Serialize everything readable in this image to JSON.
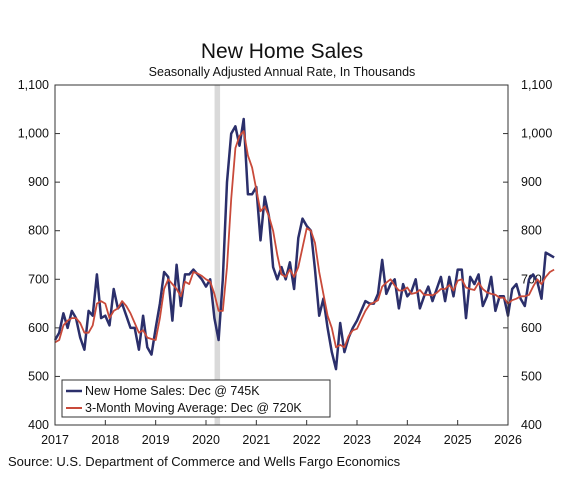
{
  "chart_data": {
    "type": "line",
    "title": "New Home Sales",
    "subtitle": "Seasonally Adjusted Annual Rate, In Thousands",
    "ylim": [
      400,
      1100
    ],
    "xlim": [
      2017,
      2026
    ],
    "y_ticks": [
      "1,100",
      "1,000",
      "900",
      "800",
      "700",
      "600",
      "500",
      "400"
    ],
    "y_tick_values": [
      1100,
      1000,
      900,
      800,
      700,
      600,
      500,
      400
    ],
    "x_ticks": [
      "2017",
      "2018",
      "2019",
      "2020",
      "2021",
      "2022",
      "2023",
      "2024",
      "2025",
      "2026"
    ],
    "x_tick_values": [
      2017,
      2018,
      2019,
      2020,
      2021,
      2022,
      2023,
      2024,
      2025,
      2026
    ],
    "grid": false,
    "right_axis": true,
    "legend_position": "bottom-left",
    "recession_shading": {
      "start": 2020.17,
      "end": 2020.28,
      "color": "#d9d9d9"
    },
    "x_start": 2017.0,
    "x_step": 0.08333,
    "series": [
      {
        "name": "New Home Sales: Dec @ 745K",
        "color": "#2b2f6b",
        "values": [
          575,
          590,
          630,
          600,
          635,
          620,
          580,
          555,
          635,
          625,
          710,
          620,
          625,
          605,
          680,
          640,
          650,
          625,
          600,
          600,
          555,
          625,
          560,
          545,
          600,
          650,
          715,
          705,
          615,
          730,
          645,
          710,
          710,
          720,
          710,
          700,
          685,
          700,
          620,
          575,
          700,
          900,
          1000,
          1015,
          975,
          1030,
          875,
          875,
          890,
          780,
          870,
          830,
          725,
          700,
          725,
          700,
          735,
          680,
          785,
          825,
          810,
          800,
          720,
          625,
          660,
          600,
          550,
          515,
          610,
          550,
          580,
          600,
          615,
          635,
          655,
          650,
          650,
          670,
          740,
          670,
          690,
          700,
          640,
          690,
          665,
          675,
          700,
          640,
          665,
          685,
          655,
          680,
          705,
          655,
          705,
          665,
          720,
          720,
          620,
          705,
          690,
          710,
          645,
          665,
          705,
          635,
          665,
          665,
          625,
          680,
          690,
          660,
          645,
          700,
          710,
          695,
          660,
          755,
          750,
          745
        ]
      },
      {
        "name": "3-Month Moving Average: Dec @ 720K",
        "color": "#c94a3a",
        "values": [
          570,
          575,
          605,
          615,
          620,
          620,
          610,
          590,
          590,
          605,
          650,
          655,
          650,
          620,
          635,
          640,
          655,
          645,
          630,
          610,
          590,
          595,
          580,
          577,
          575,
          620,
          680,
          700,
          690,
          680,
          665,
          695,
          690,
          715,
          712,
          707,
          700,
          695,
          670,
          635,
          635,
          725,
          865,
          970,
          995,
          1005,
          955,
          930,
          885,
          840,
          850,
          830,
          800,
          750,
          710,
          705,
          720,
          705,
          725,
          765,
          805,
          800,
          775,
          715,
          670,
          625,
          600,
          560,
          565,
          560,
          583,
          595,
          598,
          617,
          635,
          648,
          652,
          657,
          685,
          693,
          700,
          687,
          677,
          677,
          683,
          670,
          672,
          678,
          668,
          668,
          667,
          672,
          680,
          680,
          688,
          677,
          697,
          700,
          683,
          680,
          678,
          693,
          680,
          673,
          670,
          668,
          662,
          662,
          650,
          657,
          660,
          665,
          665,
          668,
          685,
          700,
          690,
          705,
          715,
          720
        ]
      }
    ],
    "source": "Source: U.S. Department of Commerce and Wells Fargo Economics"
  }
}
